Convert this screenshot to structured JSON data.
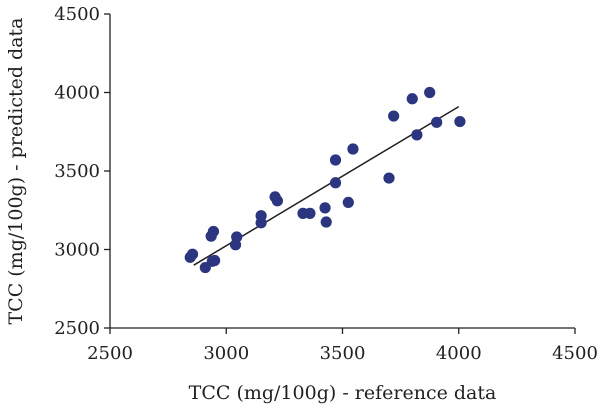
{
  "chart_data": {
    "type": "scatter",
    "title": "",
    "xlabel": "TCC (mg/100g) - reference data",
    "ylabel": "TCC (mg/100g) - predicted data",
    "xlim": [
      2500,
      4500
    ],
    "ylim": [
      2500,
      4500
    ],
    "xticks": [
      "2500",
      "3000",
      "3500",
      "4000",
      "4500"
    ],
    "yticks": [
      "2500",
      "3000",
      "3500",
      "4000",
      "4500"
    ],
    "grid": false,
    "marker_color": "#2b3580",
    "series": [
      {
        "x": [
          2845,
          2855,
          2910,
          2940,
          2950,
          2945,
          2935,
          3040,
          3045,
          3150,
          3150,
          3210,
          3220,
          3330,
          3360,
          3425,
          3430,
          3470,
          3470,
          3525,
          3545,
          3700,
          3720,
          3800,
          3820,
          3875,
          3905,
          4005
        ],
        "y": [
          2950,
          2970,
          2885,
          2925,
          2930,
          3115,
          3085,
          3030,
          3080,
          3170,
          3215,
          3335,
          3310,
          3230,
          3230,
          3265,
          3175,
          3425,
          3570,
          3300,
          3640,
          3455,
          3850,
          3960,
          3730,
          4000,
          3810,
          3815
        ]
      }
    ],
    "trendline": {
      "x": [
        2860,
        4000
      ],
      "y": [
        2900,
        3910
      ]
    }
  }
}
